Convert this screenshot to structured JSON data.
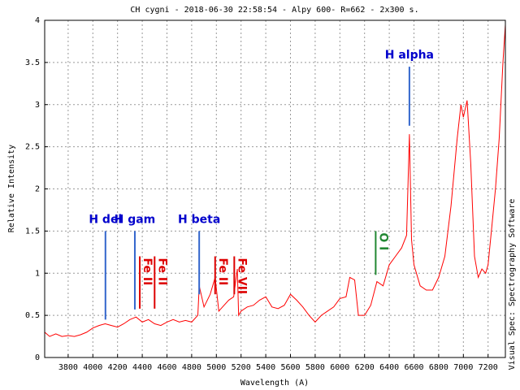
{
  "chart_data": {
    "type": "line",
    "title": "CH cygni - 2018-06-30 22:58:54 - Alpy 600- R=662 - 2x300 s.",
    "x_label": "Wavelength (A)",
    "y_label": "Relative Intensity",
    "side_note": "Visual Spec: Spectrography Software",
    "xlim": [
      3610,
      7340
    ],
    "ylim": [
      0,
      4
    ],
    "xticks": [
      3800,
      4000,
      4200,
      4400,
      4600,
      4800,
      5000,
      5200,
      5400,
      5600,
      5800,
      6000,
      6200,
      6400,
      6600,
      6800,
      7000,
      7200
    ],
    "yticks": [
      0,
      0.5,
      1,
      1.5,
      2,
      2.5,
      3,
      3.5,
      4
    ],
    "grid": true,
    "x": [
      3610,
      3650,
      3700,
      3750,
      3800,
      3850,
      3900,
      3950,
      4000,
      4050,
      4100,
      4150,
      4200,
      4250,
      4300,
      4350,
      4400,
      4450,
      4500,
      4550,
      4600,
      4650,
      4700,
      4750,
      4800,
      4850,
      4861,
      4900,
      4950,
      4990,
      5020,
      5050,
      5100,
      5140,
      5170,
      5180,
      5200,
      5250,
      5300,
      5350,
      5400,
      5450,
      5500,
      5550,
      5600,
      5650,
      5700,
      5750,
      5800,
      5850,
      5900,
      5950,
      6000,
      6050,
      6080,
      6120,
      6150,
      6200,
      6250,
      6300,
      6350,
      6400,
      6450,
      6500,
      6540,
      6563,
      6580,
      6600,
      6650,
      6700,
      6750,
      6800,
      6850,
      6900,
      6950,
      6980,
      7000,
      7030,
      7060,
      7090,
      7120,
      7150,
      7180,
      7200,
      7230,
      7260,
      7290,
      7320,
      7340
    ],
    "series": [
      {
        "name": "CH cygni",
        "color": "#ff0000",
        "values": [
          0.3,
          0.25,
          0.28,
          0.25,
          0.26,
          0.25,
          0.27,
          0.3,
          0.35,
          0.38,
          0.4,
          0.38,
          0.36,
          0.4,
          0.45,
          0.48,
          0.42,
          0.45,
          0.4,
          0.38,
          0.42,
          0.45,
          0.42,
          0.44,
          0.42,
          0.5,
          0.85,
          0.6,
          0.75,
          0.95,
          0.55,
          0.6,
          0.68,
          0.72,
          1.05,
          0.5,
          0.55,
          0.6,
          0.62,
          0.68,
          0.72,
          0.6,
          0.58,
          0.62,
          0.75,
          0.68,
          0.6,
          0.5,
          0.42,
          0.5,
          0.55,
          0.6,
          0.7,
          0.72,
          0.95,
          0.92,
          0.5,
          0.5,
          0.62,
          0.9,
          0.85,
          1.1,
          1.2,
          1.3,
          1.45,
          2.65,
          1.4,
          1.1,
          0.85,
          0.8,
          0.8,
          0.95,
          1.2,
          1.8,
          2.6,
          3.0,
          2.85,
          3.05,
          2.3,
          1.2,
          0.95,
          1.05,
          1.0,
          1.1,
          1.55,
          2.0,
          2.6,
          3.5,
          3.95
        ]
      }
    ],
    "annotations": [
      {
        "text": "H del",
        "x": 4102,
        "y": [
          0.45,
          1.5
        ],
        "color": "#0000cc",
        "line_color": "#3366cc",
        "orientation": "horizontal"
      },
      {
        "text": "H gam",
        "x": 4340,
        "y": [
          0.57,
          1.5
        ],
        "color": "#0000cc",
        "line_color": "#3366cc",
        "orientation": "horizontal"
      },
      {
        "text": "Fe II",
        "x": 4380,
        "y": [
          0.58,
          1.2
        ],
        "color": "#dd0000",
        "line_color": "#dd0000",
        "orientation": "vertical"
      },
      {
        "text": "Fe II",
        "x": 4500,
        "y": [
          0.58,
          1.2
        ],
        "color": "#dd0000",
        "line_color": "#dd0000",
        "orientation": "vertical"
      },
      {
        "text": "H beta",
        "x": 4861,
        "y": [
          0.75,
          1.5
        ],
        "color": "#0000cc",
        "line_color": "#3366cc",
        "orientation": "horizontal"
      },
      {
        "text": "Fe II",
        "x": 4990,
        "y": [
          0.75,
          1.2
        ],
        "color": "#dd0000",
        "line_color": "#dd0000",
        "orientation": "vertical"
      },
      {
        "text": "Fe VII",
        "x": 5145,
        "y": [
          0.75,
          1.2
        ],
        "color": "#dd0000",
        "line_color": "#dd0000",
        "orientation": "vertical"
      },
      {
        "text": "O I",
        "x": 6290,
        "y": [
          0.98,
          1.5
        ],
        "color": "#228833",
        "line_color": "#228833",
        "orientation": "vertical"
      },
      {
        "text": "H alpha",
        "x": 6563,
        "y": [
          2.75,
          3.45
        ],
        "color": "#0000cc",
        "line_color": "#3366cc",
        "orientation": "horizontal"
      }
    ]
  }
}
